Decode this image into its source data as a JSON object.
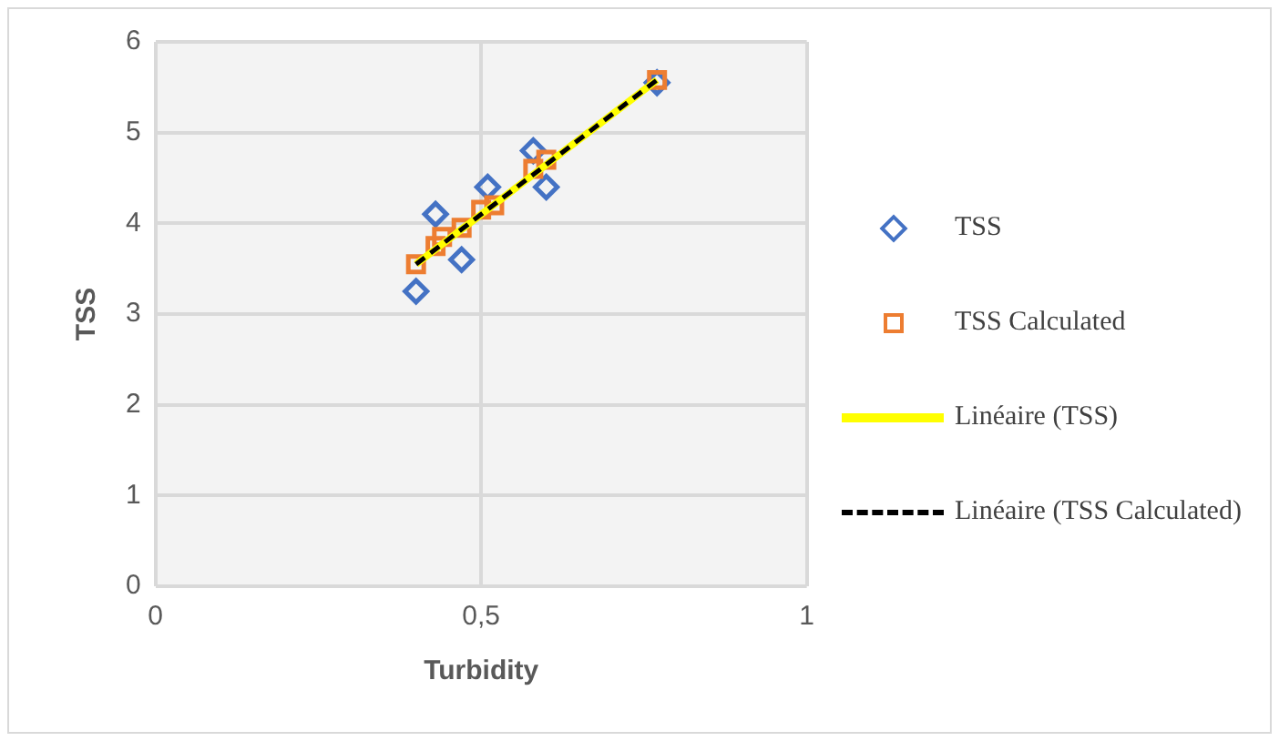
{
  "chart_data": {
    "type": "scatter",
    "xlabel": "Turbidity",
    "ylabel": "TSS",
    "xlim": [
      0,
      1
    ],
    "xticks": [
      0,
      {
        "value": 0.5,
        "label": "0,5"
      },
      1
    ],
    "ylim": [
      0,
      6
    ],
    "yticks": [
      0,
      1,
      2,
      3,
      4,
      5,
      6
    ],
    "grid": true,
    "legend": "right",
    "series": [
      {
        "name": "TSS",
        "type": "scatter",
        "marker": "diamond",
        "color": "#4472c4",
        "x": [
          0.4,
          0.43,
          0.47,
          0.51,
          0.58,
          0.6,
          0.77
        ],
        "values": [
          3.25,
          4.1,
          3.6,
          4.4,
          4.8,
          4.4,
          5.55
        ]
      },
      {
        "name": "TSS Calculated",
        "type": "scatter",
        "marker": "square",
        "color": "#ed7d31",
        "x": [
          0.4,
          0.43,
          0.44,
          0.47,
          0.5,
          0.52,
          0.58,
          0.6,
          0.77
        ],
        "values": [
          3.55,
          3.75,
          3.85,
          3.95,
          4.15,
          4.2,
          4.6,
          4.7,
          5.58
        ]
      },
      {
        "name": "Linéaire (TSS)",
        "type": "line",
        "line_style": "solid",
        "marker": "none",
        "color": "#ffff00",
        "x": [
          0.4,
          0.77
        ],
        "values": [
          3.55,
          5.58
        ]
      },
      {
        "name": "Linéaire (TSS Calculated)",
        "type": "line",
        "line_style": "dashed",
        "marker": "none",
        "color": "#000000",
        "x": [
          0.4,
          0.77
        ],
        "values": [
          3.55,
          5.58
        ]
      }
    ]
  }
}
